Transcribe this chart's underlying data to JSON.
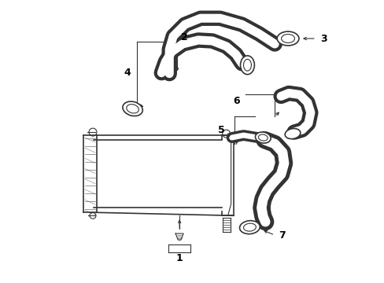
{
  "background_color": "#ffffff",
  "line_color": "#333333",
  "label_color": "#000000",
  "lw_hose": 8,
  "lw_main": 1.2,
  "lw_thin": 0.8
}
